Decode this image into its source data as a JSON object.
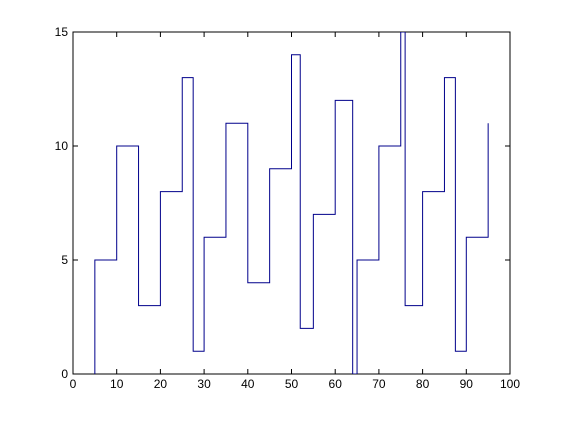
{
  "chart_data": {
    "type": "stairs",
    "x": [
      5,
      5,
      10,
      15,
      20,
      25,
      27.5,
      30,
      35,
      40,
      45,
      50,
      52,
      55,
      60,
      64,
      65,
      70,
      75,
      76,
      80,
      85,
      87.5,
      90,
      95
    ],
    "series": [
      {
        "color": "#00008b",
        "values": [
          0,
          5,
          10,
          3,
          8,
          13,
          1,
          6,
          11,
          4,
          9,
          14,
          2,
          7,
          12,
          0,
          5,
          10,
          15,
          3,
          8,
          13,
          1,
          6,
          11
        ]
      }
    ],
    "xlim": [
      0,
      100
    ],
    "xticks": [
      0,
      10,
      20,
      30,
      40,
      50,
      60,
      70,
      80,
      90,
      100
    ],
    "ylim": [
      0,
      15
    ],
    "yticks": [
      0,
      5,
      10,
      15
    ],
    "grid": false
  }
}
